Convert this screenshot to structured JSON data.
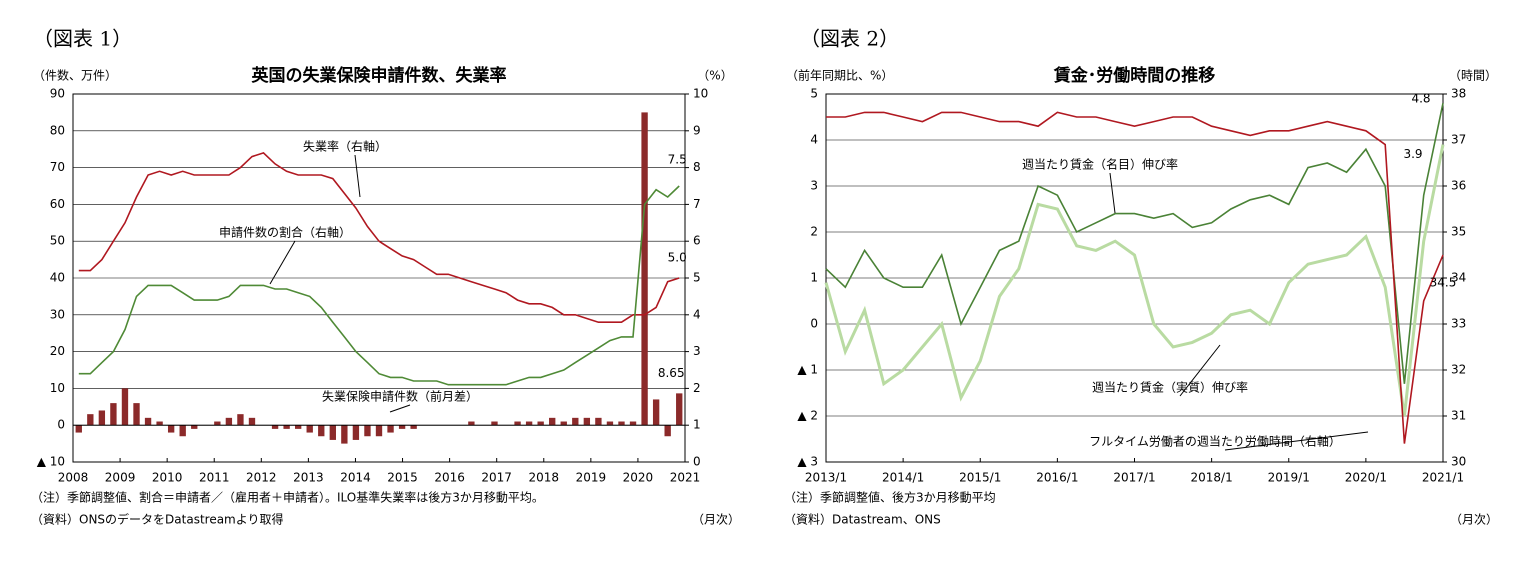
{
  "chart_data": [
    {
      "type": "combo",
      "figure_label": "（図表 1）",
      "title": "英国の失業保険申請件数、失業率",
      "y_label": "（件数、万件）",
      "y2_label": "（%）",
      "x_unit": "（月次）",
      "notes": [
        "（注）季節調整値、割合＝申請者／（雇用者＋申請者）。ILO基準失業率は後方3か月移動平均。",
        "（資料）ONSのデータをDatastreamより取得"
      ],
      "categories": [
        "2008",
        null,
        null,
        null,
        "2009",
        null,
        null,
        null,
        "2010",
        null,
        null,
        null,
        "2011",
        null,
        null,
        null,
        "2012",
        null,
        null,
        null,
        "2013",
        null,
        null,
        null,
        "2014",
        null,
        null,
        null,
        "2015",
        null,
        null,
        null,
        "2016",
        null,
        null,
        null,
        "2017",
        null,
        null,
        null,
        "2018",
        null,
        null,
        null,
        "2019",
        null,
        null,
        null,
        "2020",
        null,
        null,
        null,
        "2021"
      ],
      "ylim": [
        -10,
        90
      ],
      "yticks": [
        {
          "value": -10,
          "label": "▲ 10"
        },
        0,
        10,
        20,
        30,
        40,
        50,
        60,
        70,
        80,
        90
      ],
      "y2lim": [
        0,
        10
      ],
      "y2ticks": [
        0,
        1,
        2,
        3,
        4,
        5,
        6,
        7,
        8,
        9,
        10
      ],
      "grid": true,
      "series": [
        {
          "name": "失業率（右軸）",
          "type": "line",
          "axis": "y2",
          "color": "#b01820",
          "values": [
            5.2,
            5.2,
            5.5,
            6.0,
            6.5,
            7.2,
            7.8,
            7.9,
            7.8,
            7.9,
            7.8,
            7.8,
            7.8,
            7.8,
            8.0,
            8.3,
            8.4,
            8.1,
            7.9,
            7.8,
            7.8,
            7.8,
            7.7,
            7.3,
            6.9,
            6.4,
            6.0,
            5.8,
            5.6,
            5.5,
            5.3,
            5.1,
            5.1,
            5.0,
            4.9,
            4.8,
            4.7,
            4.6,
            4.4,
            4.3,
            4.3,
            4.2,
            4.0,
            4.0,
            3.9,
            3.8,
            3.8,
            3.8,
            4.0,
            4.0,
            4.2,
            4.9,
            5.0
          ],
          "value_labels": [
            null,
            null,
            null,
            null,
            null,
            null,
            null,
            null,
            null,
            null,
            null,
            null,
            null,
            null,
            null,
            null,
            null,
            null,
            null,
            null,
            null,
            null,
            null,
            null,
            null,
            null,
            null,
            null,
            null,
            null,
            null,
            null,
            null,
            null,
            null,
            null,
            null,
            null,
            null,
            null,
            null,
            null,
            null,
            null,
            null,
            null,
            null,
            null,
            null,
            null,
            null,
            null,
            "5.0"
          ]
        },
        {
          "name": "申請件数の割合（右軸）",
          "type": "line",
          "axis": "y2",
          "color": "#4f8a36",
          "values": [
            2.4,
            2.4,
            2.7,
            3.0,
            3.6,
            4.5,
            4.8,
            4.8,
            4.8,
            4.6,
            4.4,
            4.4,
            4.4,
            4.5,
            4.8,
            4.8,
            4.8,
            4.7,
            4.7,
            4.6,
            4.5,
            4.2,
            3.8,
            3.4,
            3.0,
            2.7,
            2.4,
            2.3,
            2.3,
            2.2,
            2.2,
            2.2,
            2.1,
            2.1,
            2.1,
            2.1,
            2.1,
            2.1,
            2.2,
            2.3,
            2.3,
            2.4,
            2.5,
            2.7,
            2.9,
            3.1,
            3.3,
            3.4,
            3.4,
            7.0,
            7.4,
            7.2,
            7.5
          ],
          "value_labels": [
            null,
            null,
            null,
            null,
            null,
            null,
            null,
            null,
            null,
            null,
            null,
            null,
            null,
            null,
            null,
            null,
            null,
            null,
            null,
            null,
            null,
            null,
            null,
            null,
            null,
            null,
            null,
            null,
            null,
            null,
            null,
            null,
            null,
            null,
            null,
            null,
            null,
            null,
            null,
            null,
            null,
            null,
            null,
            null,
            null,
            null,
            null,
            null,
            null,
            null,
            null,
            null,
            "7.5"
          ]
        },
        {
          "name": "失業保険申請件数（前月差）",
          "type": "bar",
          "color": "#8b2a2a",
          "values": [
            -2,
            3,
            4,
            6,
            10,
            6,
            2,
            1,
            -2,
            -3,
            -1,
            0,
            1,
            2,
            3,
            2,
            0,
            -1,
            -1,
            -1,
            -2,
            -3,
            -4,
            -5,
            -4,
            -3,
            -3,
            -2,
            -1,
            -1,
            0,
            0,
            0,
            0,
            1,
            0,
            1,
            0,
            1,
            1,
            1,
            2,
            1,
            2,
            2,
            2,
            1,
            1,
            1,
            85,
            7,
            -3,
            8.65
          ],
          "value_labels": [
            null,
            null,
            null,
            null,
            null,
            null,
            null,
            null,
            null,
            null,
            null,
            null,
            null,
            null,
            null,
            null,
            null,
            null,
            null,
            null,
            null,
            null,
            null,
            null,
            null,
            null,
            null,
            null,
            null,
            null,
            null,
            null,
            null,
            null,
            null,
            null,
            null,
            null,
            null,
            null,
            null,
            null,
            null,
            null,
            null,
            null,
            null,
            null,
            null,
            null,
            null,
            null,
            "8.65"
          ]
        }
      ]
    },
    {
      "type": "line",
      "figure_label": "（図表 2）",
      "title": "賃金･労働時間の推移",
      "y_label": "（前年同期比、%）",
      "y2_label": "（時間）",
      "x_unit": "（月次）",
      "notes": [
        "（注）季節調整値、後方3か月移動平均",
        "（資料）Datastream、ONS"
      ],
      "categories": [
        "2013/1",
        null,
        null,
        null,
        "2014/1",
        null,
        null,
        null,
        "2015/1",
        null,
        null,
        null,
        "2016/1",
        null,
        null,
        null,
        "2017/1",
        null,
        null,
        null,
        "2018/1",
        null,
        null,
        null,
        "2019/1",
        null,
        null,
        null,
        "2020/1",
        null,
        null,
        null,
        "2021/1"
      ],
      "ylim": [
        -3,
        5
      ],
      "yticks": [
        {
          "value": -3,
          "label": "▲ 3"
        },
        {
          "value": -2,
          "label": "▲ 2"
        },
        {
          "value": -1,
          "label": "▲ 1"
        },
        0,
        1,
        2,
        3,
        4,
        5
      ],
      "y2lim": [
        30,
        38
      ],
      "y2ticks": [
        30,
        31,
        32,
        33,
        34,
        35,
        36,
        37,
        38
      ],
      "grid": true,
      "series": [
        {
          "name": "週当たり賃金（名目）伸び率",
          "type": "line",
          "color": "#4a8236",
          "values": [
            1.2,
            0.8,
            1.6,
            1.0,
            0.8,
            0.8,
            1.5,
            0.0,
            0.8,
            1.6,
            1.8,
            3.0,
            2.8,
            2.0,
            2.2,
            2.4,
            2.4,
            2.3,
            2.4,
            2.1,
            2.2,
            2.5,
            2.7,
            2.8,
            2.6,
            3.4,
            3.5,
            3.3,
            3.8,
            3.0,
            -1.3,
            2.8,
            4.8
          ],
          "value_labels": [
            null,
            null,
            null,
            null,
            null,
            null,
            null,
            null,
            null,
            null,
            null,
            null,
            null,
            null,
            null,
            null,
            null,
            null,
            null,
            null,
            null,
            null,
            null,
            null,
            null,
            null,
            null,
            null,
            null,
            null,
            null,
            null,
            "4.8"
          ]
        },
        {
          "name": "週当たり賃金（実質）伸び率",
          "type": "line",
          "color": "#b9dba2",
          "values": [
            0.9,
            -0.6,
            0.3,
            -1.3,
            -1.0,
            -0.5,
            0.0,
            -1.6,
            -0.8,
            0.6,
            1.2,
            2.6,
            2.5,
            1.7,
            1.6,
            1.8,
            1.5,
            0.0,
            -0.5,
            -0.4,
            -0.2,
            0.2,
            0.3,
            0.0,
            0.9,
            1.3,
            1.4,
            1.5,
            1.9,
            0.8,
            -2.0,
            1.8,
            3.9
          ],
          "value_labels": [
            null,
            null,
            null,
            null,
            null,
            null,
            null,
            null,
            null,
            null,
            null,
            null,
            null,
            null,
            null,
            null,
            null,
            null,
            null,
            null,
            null,
            null,
            null,
            null,
            null,
            null,
            null,
            null,
            null,
            null,
            null,
            null,
            "3.9"
          ]
        },
        {
          "name": "フルタイム労働者の週当たり労働時間（右軸）",
          "type": "line",
          "axis": "y2",
          "color": "#b01820",
          "values": [
            37.5,
            37.5,
            37.6,
            37.6,
            37.5,
            37.4,
            37.6,
            37.6,
            37.5,
            37.4,
            37.4,
            37.3,
            37.6,
            37.5,
            37.5,
            37.4,
            37.3,
            37.4,
            37.5,
            37.5,
            37.3,
            37.2,
            37.1,
            37.2,
            37.2,
            37.3,
            37.4,
            37.3,
            37.2,
            36.9,
            30.4,
            33.5,
            34.5
          ],
          "value_labels": [
            null,
            null,
            null,
            null,
            null,
            null,
            null,
            null,
            null,
            null,
            null,
            null,
            null,
            null,
            null,
            null,
            null,
            null,
            null,
            null,
            null,
            null,
            null,
            null,
            null,
            null,
            null,
            null,
            null,
            null,
            null,
            null,
            "34.5"
          ]
        }
      ]
    }
  ]
}
